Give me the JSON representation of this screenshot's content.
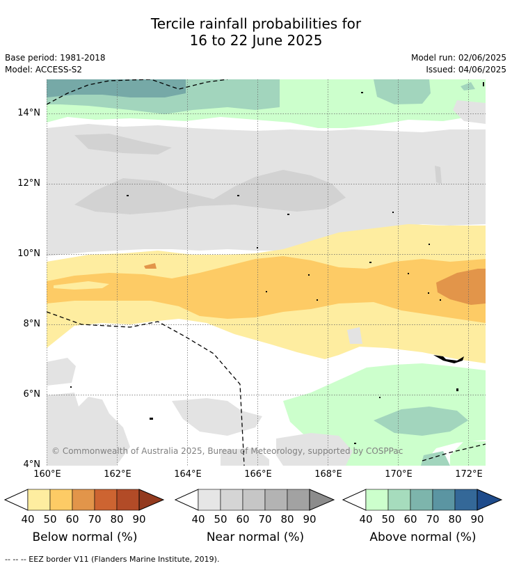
{
  "title": {
    "line1": "Tercile rainfall probabilities for",
    "line2": "16 to 22 June 2025"
  },
  "meta": {
    "base_period": "Base period: 1981-2018",
    "model": "Model: ACCESS-S2",
    "model_run": "Model run: 02/06/2025",
    "issued": "Issued: 04/06/2025"
  },
  "map": {
    "lon_labels": [
      "160°E",
      "162°E",
      "164°E",
      "166°E",
      "168°E",
      "170°E",
      "172°E"
    ],
    "lat_labels": [
      "14°N",
      "12°N",
      "10°N",
      "8°N",
      "6°N",
      "4°N"
    ],
    "copyright": "© Commonwealth of Australia 2025, Bureau of Meteorology, supported by COSPPac",
    "colors": {
      "below_40": "#feeda0",
      "below_50": "#fdcb65",
      "below_60": "#e2954a",
      "near_40": "#e3e3e3",
      "above_40": "#ccffcc",
      "above_50": "#a2d5bd",
      "above_60": "#76a9a7"
    }
  },
  "colorbars": [
    {
      "title": "Below normal (%)",
      "labels": [
        "40",
        "50",
        "60",
        "70",
        "80",
        "90"
      ],
      "colors": [
        "#feeda0",
        "#fdcb65",
        "#e2954a",
        "#cd6431",
        "#b24b27",
        "#933a1e"
      ]
    },
    {
      "title": "Near normal (%)",
      "labels": [
        "40",
        "50",
        "60",
        "70",
        "80",
        "90"
      ],
      "colors": [
        "#e6e6e6",
        "#d5d5d5",
        "#c6c6c6",
        "#b3b3b3",
        "#a2a2a2",
        "#8c8c8c"
      ]
    },
    {
      "title": "Above normal (%)",
      "labels": [
        "40",
        "50",
        "60",
        "70",
        "80",
        "90"
      ],
      "colors": [
        "#ccffcc",
        "#a6dcbd",
        "#7db5ac",
        "#5b95a2",
        "#346898",
        "#1e4b8b"
      ]
    }
  ],
  "footnote": "--  --  -- EEZ border V11 (Flanders Marine Institute, 2019)."
}
